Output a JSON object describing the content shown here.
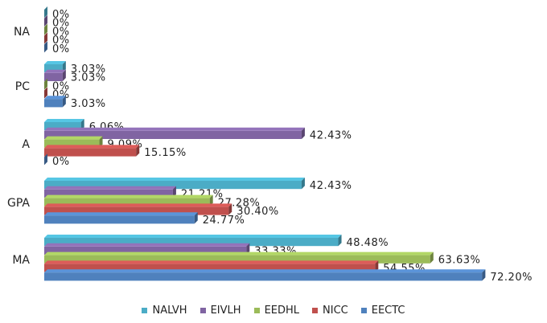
{
  "chart_data": {
    "type": "bar",
    "orientation": "horizontal",
    "style": "3d-clustered",
    "categories": [
      "NA",
      "PC",
      "A",
      "GPA",
      "MA"
    ],
    "series": [
      {
        "name": "NALVH",
        "color": "#4bacc6",
        "values": [
          0,
          3.03,
          6.06,
          42.43,
          48.48
        ],
        "labels": [
          "0%",
          "3.03%",
          "6.06%",
          "42.43%",
          "48.48%"
        ]
      },
      {
        "name": "EIVLH",
        "color": "#8064a2",
        "values": [
          0,
          3.03,
          42.43,
          21.21,
          33.33
        ],
        "labels": [
          "0%",
          "3.03%",
          "42.43%",
          "21.21%",
          "33.33%"
        ]
      },
      {
        "name": "EEDHL",
        "color": "#9bbb59",
        "values": [
          0,
          0,
          9.09,
          27.28,
          63.63
        ],
        "labels": [
          "0%",
          "0%",
          "9.09%",
          "27.28%",
          "63.63%"
        ]
      },
      {
        "name": "NICC",
        "color": "#c0504d",
        "values": [
          0,
          0,
          15.15,
          30.4,
          54.55
        ],
        "labels": [
          "0%",
          "0%",
          "15.15%",
          "30.40%",
          "54.55%"
        ]
      },
      {
        "name": "EECTC",
        "color": "#4f81bd",
        "values": [
          0,
          3.03,
          0,
          24.77,
          72.2
        ],
        "labels": [
          "0%",
          "3.03%",
          "0%",
          "24.77%",
          "72.20%"
        ]
      }
    ],
    "xlim": [
      0,
      80
    ],
    "title": "",
    "xlabel": "",
    "ylabel": "",
    "grid": false,
    "legend": "bottom"
  }
}
